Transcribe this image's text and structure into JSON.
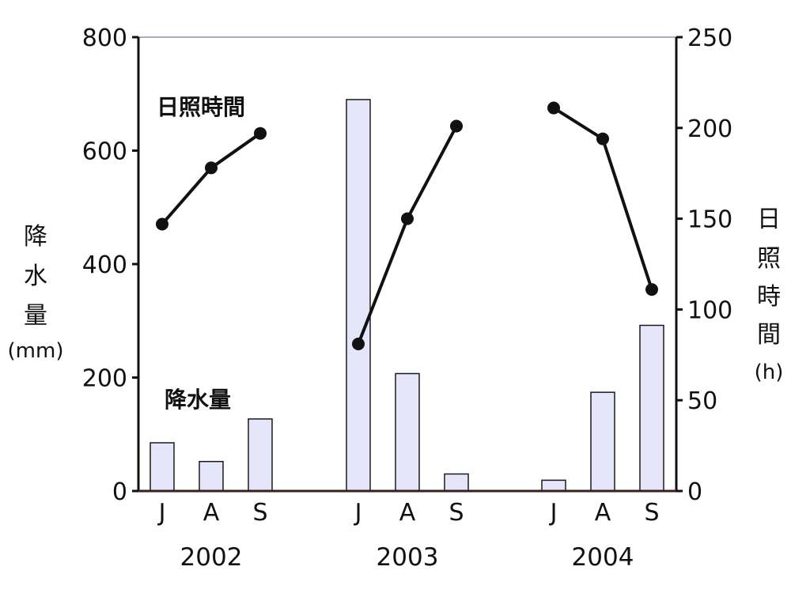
{
  "chart_data": {
    "type": "bar",
    "years": [
      "2002",
      "2003",
      "2004"
    ],
    "months": [
      "J",
      "A",
      "S"
    ],
    "y_left": {
      "label_chars": [
        "降",
        "水",
        "量"
      ],
      "unit": "(mm)",
      "ylim": [
        0,
        800
      ],
      "ticks": [
        "0",
        "200",
        "400",
        "600",
        "800"
      ]
    },
    "y_right": {
      "label_chars": [
        "日",
        "照",
        "時",
        "間"
      ],
      "unit": "(h)",
      "ylim": [
        0,
        250
      ],
      "ticks": [
        "0",
        "50",
        "100",
        "150",
        "200",
        "250"
      ]
    },
    "series": [
      {
        "name": "降水量",
        "kind": "bar",
        "axis": "left",
        "values": [
          [
            85,
            52,
            127
          ],
          [
            690,
            207,
            30
          ],
          [
            19,
            174,
            292
          ]
        ]
      },
      {
        "name": "日照時間",
        "kind": "line",
        "axis": "right",
        "values": [
          [
            147,
            178,
            197
          ],
          [
            81,
            150,
            201
          ],
          [
            211,
            194,
            111
          ]
        ]
      }
    ],
    "colors": {
      "bar_fill": "#e6e6fa",
      "bar_stroke": "#1a1a1a",
      "line": "#111111",
      "top_border": "#a9aec7",
      "baseline": "#3a1f1f"
    },
    "grid": false
  }
}
